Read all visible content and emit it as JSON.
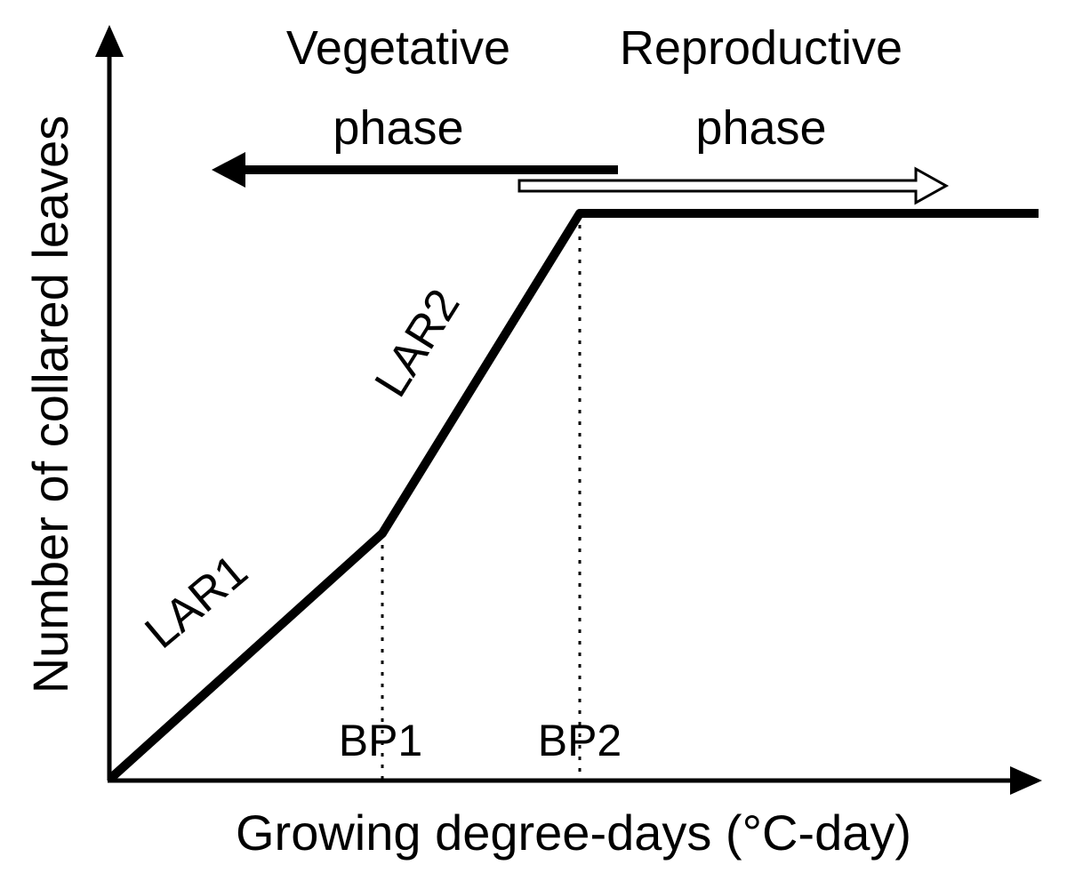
{
  "axes": {
    "y_label": "Number of collared leaves",
    "x_label": "Growing degree-days (°C-day)"
  },
  "phases": {
    "vegetative": {
      "line1": "Vegetative",
      "line2": "phase"
    },
    "reproductive": {
      "line1": "Reproductive",
      "line2": "phase"
    }
  },
  "segments": {
    "lar1": "LAR1",
    "lar2": "LAR2"
  },
  "breakpoints": {
    "bp1": "BP1",
    "bp2": "BP2"
  },
  "colors": {
    "line": "#000000",
    "background": "#ffffff"
  }
}
